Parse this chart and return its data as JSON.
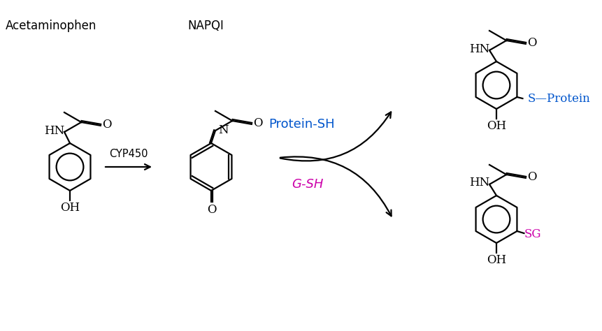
{
  "background": "#ffffff",
  "line_color": "#000000",
  "magenta_color": "#cc00aa",
  "blue_color": "#0055cc",
  "label_acetaminophen": "Acetaminophen",
  "label_napqi": "NAPQI",
  "label_cyp450": "CYP450",
  "label_gsh": "G-SH",
  "label_sg": "SG",
  "label_protein_sh": "Protein-SH",
  "label_s_protein": "S—Protein",
  "figw": 8.62,
  "figh": 4.74,
  "dpi": 100
}
